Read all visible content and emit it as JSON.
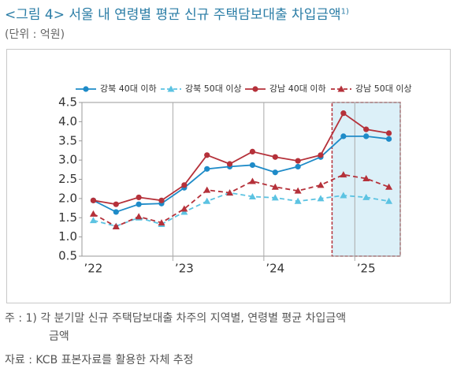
{
  "chart_data": {
    "type": "line",
    "title": "<그림 4> 서울 내 연령별 평균 신규 주택담보대출 차입금액",
    "title_note": "1)",
    "subtitle": "(단위 : 억원)",
    "categories": [
      "’22",
      null,
      null,
      null,
      "’23",
      null,
      null,
      null,
      "’24",
      null,
      null,
      null,
      "’25",
      null
    ],
    "series": [
      {
        "name": "강북 40대 이하",
        "color": "#1e8bc8",
        "dash": false,
        "marker": "circle",
        "values": [
          1.95,
          1.65,
          1.85,
          1.87,
          2.28,
          2.77,
          2.83,
          2.87,
          2.68,
          2.83,
          3.08,
          3.62,
          3.62,
          3.55
        ]
      },
      {
        "name": "강북 50대 이상",
        "color": "#5cc3e2",
        "dash": true,
        "marker": "triangle",
        "values": [
          1.43,
          1.28,
          1.5,
          1.33,
          1.65,
          1.93,
          2.15,
          2.05,
          2.02,
          1.93,
          2.0,
          2.08,
          2.03,
          1.93
        ]
      },
      {
        "name": "강남 40대 이하",
        "color": "#b5313a",
        "dash": false,
        "marker": "circle",
        "values": [
          1.95,
          1.85,
          2.03,
          1.95,
          2.35,
          3.13,
          2.9,
          3.22,
          3.08,
          2.98,
          3.13,
          4.22,
          3.8,
          3.7
        ]
      },
      {
        "name": "강남 50대 이상",
        "color": "#b5313a",
        "dash": true,
        "marker": "triangle",
        "values": [
          1.6,
          1.27,
          1.53,
          1.37,
          1.73,
          2.22,
          2.15,
          2.45,
          2.3,
          2.2,
          2.35,
          2.62,
          2.52,
          2.3
        ]
      }
    ],
    "ylim": [
      0.5,
      4.5
    ],
    "yticks": [
      0.5,
      {
        "value": 1,
        "label": "1.0"
      },
      1.5,
      {
        "value": 2,
        "label": "2.0"
      },
      2.5,
      {
        "value": 3,
        "label": "3.0"
      },
      3.5,
      {
        "value": 4,
        "label": "4.0"
      },
      4.5
    ],
    "highlight": {
      "start": 11,
      "end": 13,
      "color": "#dcf0f8",
      "border": "#b5313a"
    },
    "legend": "top",
    "notes": [
      "주 : 1) 각 분기말 신규 주택담보대출 차주의 지역별, 연령별 평균 차입금액",
      "금액"
    ],
    "source": "자료 : KCB 표본자료를 활용한 자체 추정"
  }
}
